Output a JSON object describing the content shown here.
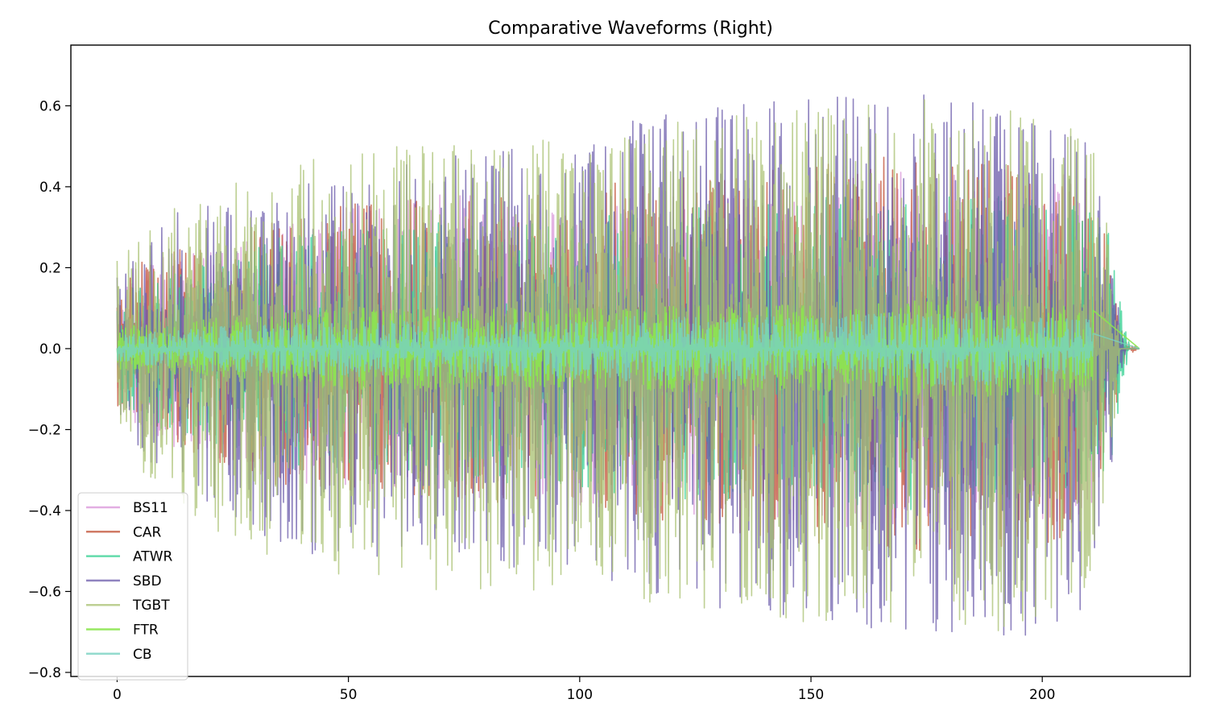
{
  "chart_data": {
    "type": "line",
    "title": "Comparative Waveforms (Right)",
    "xlabel": "",
    "ylabel": "",
    "xlim": [
      -10,
      232
    ],
    "ylim": [
      -0.81,
      0.75
    ],
    "x_ticks": [
      0,
      50,
      100,
      150,
      200
    ],
    "x_tick_labels": [
      "0",
      "50",
      "100",
      "150",
      "200"
    ],
    "y_ticks": [
      0.6,
      0.4,
      0.2,
      0.0,
      -0.2,
      -0.4,
      -0.6,
      -0.8
    ],
    "y_tick_labels": [
      "0.6",
      "0.4",
      "0.2",
      "0.0",
      "−0.2",
      "−0.4",
      "−0.6",
      "−0.8"
    ],
    "grid": false,
    "legend_position": "lower-left",
    "x_end": 221,
    "series": [
      {
        "name": "BS11",
        "color": "#dda0dd",
        "opacity": 0.85,
        "end": 218,
        "envelope": {
          "x": [
            0,
            5,
            15,
            25,
            35,
            50,
            70,
            90,
            105,
            110,
            130,
            150,
            170,
            190,
            205,
            211,
            215,
            218
          ],
          "upper": [
            0.15,
            0.22,
            0.25,
            0.25,
            0.3,
            0.35,
            0.38,
            0.38,
            0.4,
            0.38,
            0.4,
            0.42,
            0.44,
            0.45,
            0.44,
            0.4,
            0.2,
            0.0
          ],
          "lower": [
            -0.15,
            -0.22,
            -0.25,
            -0.28,
            -0.33,
            -0.35,
            -0.38,
            -0.38,
            -0.4,
            -0.4,
            -0.42,
            -0.44,
            -0.46,
            -0.46,
            -0.44,
            -0.4,
            -0.2,
            0.0
          ]
        }
      },
      {
        "name": "CAR",
        "color": "#c8644b",
        "opacity": 0.85,
        "end": 221,
        "envelope": {
          "x": [
            0,
            5,
            15,
            25,
            35,
            50,
            70,
            90,
            105,
            110,
            130,
            150,
            170,
            190,
            205,
            211,
            215,
            218,
            221
          ],
          "upper": [
            0.15,
            0.22,
            0.25,
            0.28,
            0.32,
            0.36,
            0.38,
            0.38,
            0.4,
            0.42,
            0.44,
            0.46,
            0.48,
            0.48,
            0.46,
            0.42,
            0.2,
            0.02,
            0.0
          ],
          "lower": [
            -0.15,
            -0.22,
            -0.26,
            -0.3,
            -0.34,
            -0.36,
            -0.38,
            -0.38,
            -0.4,
            -0.44,
            -0.46,
            -0.48,
            -0.5,
            -0.5,
            -0.48,
            -0.42,
            -0.2,
            -0.02,
            0.0
          ]
        }
      },
      {
        "name": "ATWR",
        "color": "#3cd296",
        "opacity": 0.8,
        "end": 219,
        "envelope": {
          "x": [
            0,
            5,
            15,
            25,
            35,
            50,
            70,
            90,
            105,
            110,
            130,
            150,
            170,
            190,
            205,
            211,
            215,
            219
          ],
          "upper": [
            0.12,
            0.18,
            0.2,
            0.22,
            0.28,
            0.3,
            0.32,
            0.32,
            0.34,
            0.34,
            0.36,
            0.38,
            0.38,
            0.38,
            0.36,
            0.34,
            0.28,
            0.0
          ],
          "lower": [
            -0.12,
            -0.18,
            -0.22,
            -0.25,
            -0.3,
            -0.32,
            -0.34,
            -0.34,
            -0.36,
            -0.36,
            -0.38,
            -0.38,
            -0.4,
            -0.4,
            -0.38,
            -0.36,
            -0.28,
            0.0
          ]
        }
      },
      {
        "name": "SBD",
        "color": "#6a5aaa",
        "opacity": 0.75,
        "end": 218,
        "envelope": {
          "x": [
            0,
            5,
            15,
            25,
            35,
            50,
            70,
            90,
            105,
            110,
            130,
            150,
            170,
            190,
            205,
            211,
            215,
            218
          ],
          "upper": [
            0.2,
            0.25,
            0.36,
            0.36,
            0.4,
            0.45,
            0.48,
            0.5,
            0.52,
            0.56,
            0.6,
            0.62,
            0.64,
            0.62,
            0.6,
            0.52,
            0.25,
            0.0
          ],
          "lower": [
            -0.2,
            -0.26,
            -0.36,
            -0.42,
            -0.5,
            -0.52,
            -0.5,
            -0.55,
            -0.56,
            -0.62,
            -0.64,
            -0.68,
            -0.7,
            -0.72,
            -0.7,
            -0.6,
            -0.3,
            0.0
          ]
        }
      },
      {
        "name": "TGBT",
        "color": "#a8c070",
        "opacity": 0.75,
        "end": 217,
        "envelope": {
          "x": [
            0,
            5,
            15,
            25,
            35,
            50,
            70,
            90,
            105,
            110,
            130,
            150,
            170,
            190,
            205,
            211,
            215,
            217
          ],
          "upper": [
            0.22,
            0.28,
            0.4,
            0.42,
            0.45,
            0.5,
            0.5,
            0.52,
            0.5,
            0.54,
            0.58,
            0.6,
            0.62,
            0.6,
            0.58,
            0.5,
            0.25,
            0.0
          ],
          "lower": [
            -0.2,
            -0.3,
            -0.4,
            -0.48,
            -0.55,
            -0.56,
            -0.6,
            -0.6,
            -0.58,
            -0.62,
            -0.65,
            -0.68,
            -0.68,
            -0.7,
            -0.68,
            -0.58,
            -0.3,
            0.0
          ]
        }
      },
      {
        "name": "FTR",
        "color": "#8ce650",
        "opacity": 0.9,
        "end": 211,
        "envelope": {
          "x": [
            0,
            5,
            15,
            25,
            35,
            50,
            70,
            90,
            105,
            130,
            150,
            170,
            190,
            205,
            211
          ],
          "upper": [
            0.05,
            0.06,
            0.07,
            0.08,
            0.09,
            0.1,
            0.1,
            0.1,
            0.1,
            0.11,
            0.11,
            0.12,
            0.12,
            0.11,
            0.1
          ],
          "lower": [
            -0.05,
            -0.06,
            -0.07,
            -0.08,
            -0.09,
            -0.1,
            -0.1,
            -0.1,
            -0.1,
            -0.11,
            -0.11,
            -0.12,
            -0.12,
            -0.11,
            -0.1
          ]
        }
      },
      {
        "name": "CB",
        "color": "#78d2c0",
        "opacity": 0.8,
        "end": 211,
        "envelope": {
          "x": [
            0,
            5,
            15,
            25,
            35,
            50,
            70,
            90,
            105,
            130,
            150,
            170,
            190,
            205,
            211
          ],
          "upper": [
            0.03,
            0.04,
            0.05,
            0.06,
            0.06,
            0.07,
            0.07,
            0.07,
            0.08,
            0.08,
            0.08,
            0.09,
            0.09,
            0.08,
            0.07
          ],
          "lower": [
            -0.03,
            -0.04,
            -0.05,
            -0.06,
            -0.06,
            -0.07,
            -0.07,
            -0.07,
            -0.08,
            -0.08,
            -0.08,
            -0.09,
            -0.09,
            -0.08,
            -0.07
          ]
        }
      }
    ]
  }
}
